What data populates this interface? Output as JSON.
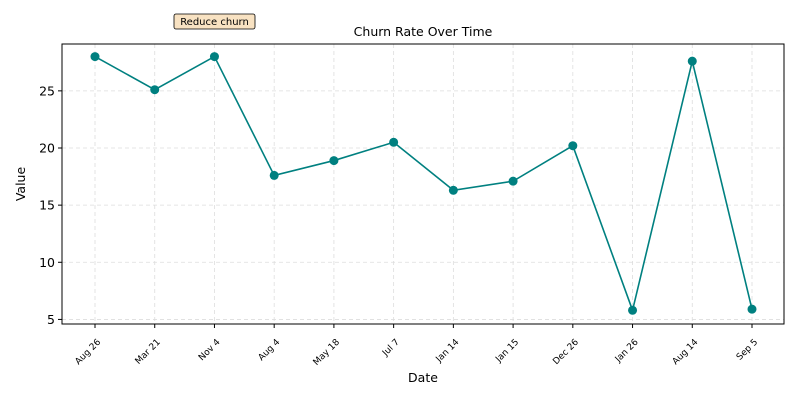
{
  "chart_data": {
    "type": "line",
    "title": "Churn Rate Over Time",
    "xlabel": "Date",
    "ylabel": "Value",
    "categories": [
      "Aug 26",
      "Mar 21",
      "Nov 4",
      "Aug 4",
      "May 18",
      "Jul 7",
      "Jan 14",
      "Jan 15",
      "Dec 26",
      "Jan 26",
      "Aug 14",
      "Sep 5"
    ],
    "series": [
      {
        "values": [
          28.0,
          25.1,
          28.0,
          17.6,
          18.9,
          20.5,
          16.3,
          17.1,
          20.2,
          5.8,
          27.6,
          5.9
        ]
      }
    ],
    "ylim": [
      4.6,
      29.1
    ],
    "yticks": [
      5,
      10,
      15,
      20,
      25
    ],
    "grid": true,
    "line_color": "#008080",
    "marker_color": "#008080",
    "annotation": {
      "text": "Reduce churn",
      "box_fill": "#f8e2c2",
      "box_stroke": "#000000"
    }
  }
}
